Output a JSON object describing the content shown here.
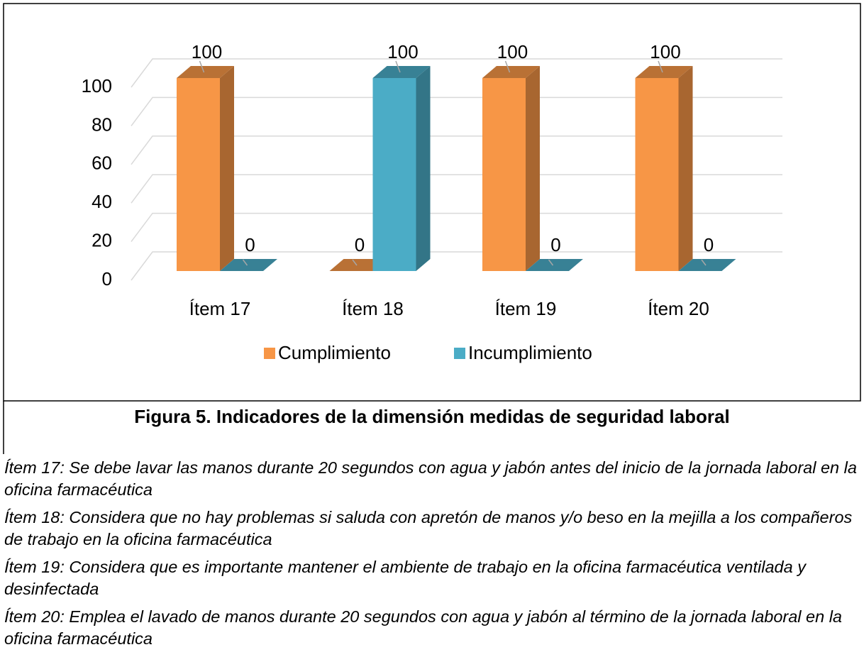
{
  "chart_data": {
    "type": "bar3d",
    "categories": [
      "Ítem 17",
      "Ítem 18",
      "Ítem 19",
      "Ítem 20"
    ],
    "series": [
      {
        "name": "Cumplimiento",
        "color": "#f79646",
        "values": [
          100,
          0,
          100,
          100
        ]
      },
      {
        "name": "Incumplimiento",
        "color": "#4bacc6",
        "values": [
          0,
          100,
          0,
          0
        ]
      }
    ],
    "ylim": [
      0,
      100
    ],
    "yticks": [
      0,
      20,
      40,
      60,
      80,
      100
    ],
    "grid": true,
    "legend": "bottom"
  },
  "caption": "Figura 5. Indicadores de la dimensión medidas de seguridad laboral",
  "notes": [
    "Ítem 17: Se debe lavar las manos durante 20 segundos con agua y jabón antes del inicio de la jornada laboral en la oficina farmacéutica",
    "Ítem 18: Considera que no hay problemas si saluda con apretón de manos y/o beso en la mejilla a los compañeros de trabajo en la oficina farmacéutica",
    "Ítem 19: Considera que es importante mantener el ambiente de trabajo en la oficina farmacéutica ventilada y desinfectada",
    "Ítem 20: Emplea el lavado de manos durante 20 segundos con agua y jabón al término de la jornada laboral en la oficina farmacéutica"
  ]
}
